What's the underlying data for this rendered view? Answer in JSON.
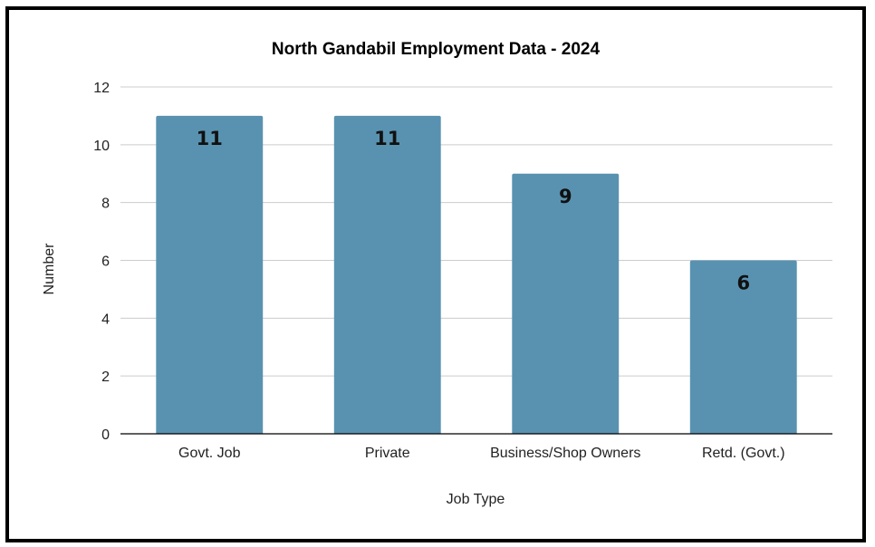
{
  "chart_data": {
    "type": "bar",
    "title": "North Gandabil Employment Data - 2024",
    "xlabel": "Job Type",
    "ylabel": "Number",
    "categories": [
      "Govt. Job",
      "Private",
      "Business/Shop Owners",
      "Retd. (Govt.)"
    ],
    "values": [
      11,
      11,
      9,
      6
    ],
    "data_labels": [
      "11",
      "11",
      "9",
      "6"
    ],
    "ylim": [
      0,
      12
    ],
    "yticks": [
      0,
      2,
      4,
      6,
      8,
      10,
      12
    ],
    "ytick_labels": [
      "0",
      "2",
      "4",
      "6",
      "8",
      "10",
      "12"
    ],
    "grid": true,
    "legend": "none",
    "colors": {
      "bar": "#5992b0",
      "grid": "#cccccc",
      "axis": "#000000"
    }
  }
}
